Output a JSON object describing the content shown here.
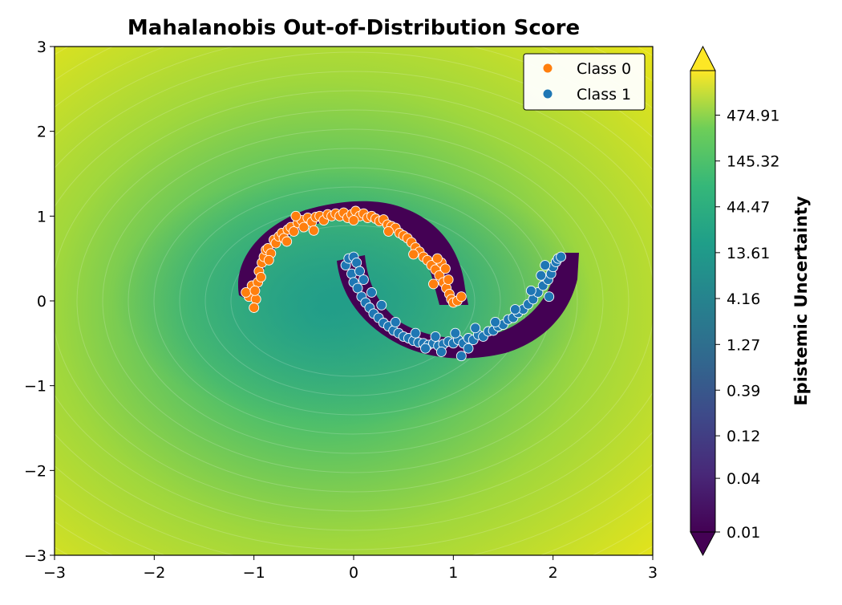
{
  "chart_data": {
    "type": "scatter",
    "title": "Mahalanobis Out-of-Distribution Score",
    "xlabel": "",
    "ylabel": "",
    "xlim": [
      -3,
      3
    ],
    "ylim": [
      -3,
      3
    ],
    "x_ticks": [
      -3,
      -2,
      -1,
      0,
      1,
      2,
      3
    ],
    "y_ticks": [
      -3,
      -2,
      -1,
      0,
      1,
      2,
      3
    ],
    "x_tick_labels": [
      "−3",
      "−2",
      "−1",
      "0",
      "1",
      "2",
      "3"
    ],
    "y_tick_labels": [
      "−3",
      "−2",
      "−1",
      "0",
      "1",
      "2",
      "3"
    ],
    "grid": false,
    "legend_position": "top-right",
    "background": {
      "type": "contourf",
      "colormap": "viridis",
      "scale": "log",
      "description_values_range": [
        0.01,
        1500
      ]
    },
    "colorbar": {
      "label": "Epistemic Uncertainty",
      "ticks": [
        0.01,
        0.04,
        0.12,
        0.39,
        1.27,
        4.16,
        13.61,
        44.47,
        145.32,
        474.91
      ],
      "tick_labels": [
        "0.01",
        "0.04",
        "0.12",
        "0.39",
        "1.27",
        "4.16",
        "13.61",
        "44.47",
        "145.32",
        "474.91"
      ],
      "extend": "both"
    },
    "series": [
      {
        "name": "Class 0",
        "color": "#ff7f0e",
        "points": [
          [
            -1.05,
            0.05
          ],
          [
            -1.02,
            0.18
          ],
          [
            -0.98,
            0.02
          ],
          [
            -1.0,
            -0.08
          ],
          [
            -0.96,
            0.22
          ],
          [
            -0.95,
            0.35
          ],
          [
            -0.92,
            0.45
          ],
          [
            -0.9,
            0.52
          ],
          [
            -0.88,
            0.6
          ],
          [
            -0.86,
            0.62
          ],
          [
            -0.83,
            0.56
          ],
          [
            -0.8,
            0.72
          ],
          [
            -0.78,
            0.68
          ],
          [
            -0.75,
            0.76
          ],
          [
            -0.72,
            0.8
          ],
          [
            -0.7,
            0.74
          ],
          [
            -0.66,
            0.84
          ],
          [
            -0.63,
            0.87
          ],
          [
            -0.6,
            0.82
          ],
          [
            -0.56,
            0.92
          ],
          [
            -0.52,
            0.95
          ],
          [
            -0.5,
            0.87
          ],
          [
            -0.46,
            0.98
          ],
          [
            -0.42,
            0.93
          ],
          [
            -0.38,
            0.99
          ],
          [
            -0.34,
            1.0
          ],
          [
            -0.3,
            0.95
          ],
          [
            -0.26,
            1.02
          ],
          [
            -0.22,
            1.0
          ],
          [
            -0.18,
            1.03
          ],
          [
            -0.14,
            1.0
          ],
          [
            -0.1,
            1.04
          ],
          [
            -0.06,
            0.98
          ],
          [
            -0.02,
            1.02
          ],
          [
            0.02,
            1.06
          ],
          [
            0.06,
            1.0
          ],
          [
            0.1,
            1.03
          ],
          [
            0.14,
            0.98
          ],
          [
            0.18,
            1.0
          ],
          [
            0.22,
            0.97
          ],
          [
            0.26,
            0.94
          ],
          [
            0.3,
            0.96
          ],
          [
            0.34,
            0.9
          ],
          [
            0.38,
            0.88
          ],
          [
            0.42,
            0.86
          ],
          [
            0.46,
            0.8
          ],
          [
            0.5,
            0.77
          ],
          [
            0.54,
            0.74
          ],
          [
            0.58,
            0.69
          ],
          [
            0.62,
            0.63
          ],
          [
            0.66,
            0.58
          ],
          [
            0.7,
            0.52
          ],
          [
            0.74,
            0.48
          ],
          [
            0.78,
            0.42
          ],
          [
            0.82,
            0.37
          ],
          [
            0.86,
            0.3
          ],
          [
            0.9,
            0.22
          ],
          [
            0.93,
            0.15
          ],
          [
            0.96,
            0.08
          ],
          [
            0.98,
            0.02
          ],
          [
            1.0,
            -0.02
          ],
          [
            1.04,
            0.0
          ],
          [
            1.08,
            0.05
          ],
          [
            0.88,
            0.45
          ],
          [
            0.84,
            0.5
          ],
          [
            0.92,
            0.38
          ],
          [
            -0.93,
            0.28
          ],
          [
            -0.85,
            0.48
          ],
          [
            -0.67,
            0.7
          ],
          [
            -0.4,
            0.83
          ],
          [
            0.0,
            0.95
          ],
          [
            0.35,
            0.82
          ],
          [
            0.6,
            0.55
          ],
          [
            0.8,
            0.2
          ],
          [
            0.95,
            0.25
          ],
          [
            -1.08,
            0.1
          ],
          [
            -0.99,
            0.12
          ],
          [
            -0.58,
            1.0
          ]
        ]
      },
      {
        "name": "Class 1",
        "color": "#1f77b4",
        "points": [
          [
            -0.08,
            0.42
          ],
          [
            -0.05,
            0.5
          ],
          [
            0.0,
            0.52
          ],
          [
            0.03,
            0.45
          ],
          [
            -0.02,
            0.32
          ],
          [
            0.0,
            0.22
          ],
          [
            0.04,
            0.15
          ],
          [
            0.08,
            0.05
          ],
          [
            0.12,
            -0.02
          ],
          [
            0.16,
            -0.08
          ],
          [
            0.2,
            -0.15
          ],
          [
            0.25,
            -0.2
          ],
          [
            0.3,
            -0.26
          ],
          [
            0.35,
            -0.3
          ],
          [
            0.4,
            -0.35
          ],
          [
            0.45,
            -0.38
          ],
          [
            0.5,
            -0.42
          ],
          [
            0.55,
            -0.44
          ],
          [
            0.6,
            -0.47
          ],
          [
            0.65,
            -0.49
          ],
          [
            0.7,
            -0.5
          ],
          [
            0.75,
            -0.52
          ],
          [
            0.8,
            -0.5
          ],
          [
            0.85,
            -0.53
          ],
          [
            0.9,
            -0.51
          ],
          [
            0.95,
            -0.48
          ],
          [
            1.0,
            -0.5
          ],
          [
            1.05,
            -0.46
          ],
          [
            1.1,
            -0.5
          ],
          [
            1.15,
            -0.44
          ],
          [
            1.2,
            -0.46
          ],
          [
            1.25,
            -0.4
          ],
          [
            1.3,
            -0.42
          ],
          [
            1.35,
            -0.36
          ],
          [
            1.4,
            -0.35
          ],
          [
            1.45,
            -0.3
          ],
          [
            1.5,
            -0.28
          ],
          [
            1.55,
            -0.22
          ],
          [
            1.6,
            -0.2
          ],
          [
            1.65,
            -0.14
          ],
          [
            1.7,
            -0.1
          ],
          [
            1.75,
            -0.04
          ],
          [
            1.8,
            0.02
          ],
          [
            1.85,
            0.1
          ],
          [
            1.9,
            0.18
          ],
          [
            1.95,
            0.25
          ],
          [
            1.98,
            0.32
          ],
          [
            2.0,
            0.4
          ],
          [
            2.03,
            0.46
          ],
          [
            2.05,
            0.5
          ],
          [
            1.92,
            0.42
          ],
          [
            1.88,
            0.3
          ],
          [
            0.06,
            0.35
          ],
          [
            0.1,
            0.25
          ],
          [
            0.18,
            0.1
          ],
          [
            0.28,
            -0.05
          ],
          [
            0.42,
            -0.25
          ],
          [
            0.62,
            -0.38
          ],
          [
            0.82,
            -0.42
          ],
          [
            1.02,
            -0.38
          ],
          [
            1.22,
            -0.32
          ],
          [
            1.42,
            -0.25
          ],
          [
            1.62,
            -0.1
          ],
          [
            1.78,
            0.12
          ],
          [
            1.08,
            -0.65
          ],
          [
            0.88,
            -0.6
          ],
          [
            1.15,
            -0.56
          ],
          [
            0.72,
            -0.56
          ],
          [
            2.08,
            0.52
          ],
          [
            1.96,
            0.05
          ]
        ]
      }
    ]
  }
}
